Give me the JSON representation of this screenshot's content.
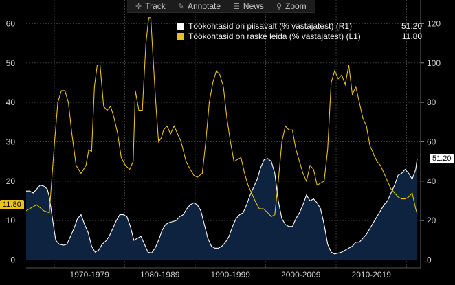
{
  "toolbar": {
    "track_label": "Track",
    "annotate_label": "Annotate",
    "news_label": "News",
    "zoom_label": "Zoom"
  },
  "legend": {
    "r1_label": "Töökohtasid on piisavalt (% vastajatest) (R1)",
    "r1_value": "51.20",
    "l1_label": "Töökohtasid on raske leida (% vastajatest) (L1)",
    "l1_value": "11.80"
  },
  "colors": {
    "r1": "#ffffff",
    "l1": "#e8c21a",
    "area_fill": "#0e2340",
    "grid": "#3a3a3a"
  },
  "chart_data": {
    "type": "line",
    "x_domain": [
      1965.5,
      2021.5
    ],
    "left_axis": {
      "ticks": [
        0,
        10,
        20,
        30,
        40,
        50,
        60
      ],
      "range": [
        -2,
        66
      ]
    },
    "right_axis": {
      "ticks": [
        0,
        20,
        40,
        60,
        80,
        100,
        120
      ],
      "range": [
        -4,
        132
      ]
    },
    "x_bands": [
      "1970-1979",
      "1980-1989",
      "1990-1999",
      "2000-2009",
      "2010-2019"
    ],
    "grid": true,
    "legend_position": "top-right",
    "series": [
      {
        "name": "Töökohtasid on raske leida (% vastajatest) (L1)",
        "axis": "left",
        "values": [
          [
            1965.5,
            12.5
          ],
          [
            1967.0,
            14.0
          ],
          [
            1968.0,
            12.5
          ],
          [
            1968.8,
            12.0
          ],
          [
            1969.5,
            29.0
          ],
          [
            1970.0,
            40.0
          ],
          [
            1970.5,
            43.0
          ],
          [
            1971.0,
            43.0
          ],
          [
            1971.5,
            40.0
          ],
          [
            1972.0,
            32.0
          ],
          [
            1972.6,
            24.0
          ],
          [
            1973.3,
            22.0
          ],
          [
            1974.0,
            24.0
          ],
          [
            1974.4,
            28.0
          ],
          [
            1974.8,
            27.5
          ],
          [
            1975.2,
            44.0
          ],
          [
            1975.6,
            49.5
          ],
          [
            1976.0,
            49.5
          ],
          [
            1976.5,
            39.0
          ],
          [
            1977.0,
            38.0
          ],
          [
            1977.5,
            39.0
          ],
          [
            1978.0,
            36.0
          ],
          [
            1978.5,
            32.0
          ],
          [
            1979.0,
            26.0
          ],
          [
            1979.6,
            24.0
          ],
          [
            1980.2,
            23.0
          ],
          [
            1980.7,
            25.0
          ],
          [
            1981.0,
            43.0
          ],
          [
            1981.5,
            38.0
          ],
          [
            1982.0,
            38.0
          ],
          [
            1982.5,
            55.0
          ],
          [
            1982.9,
            61.5
          ],
          [
            1983.2,
            61.5
          ],
          [
            1983.5,
            52.0
          ],
          [
            1983.9,
            40.0
          ],
          [
            1984.3,
            30.0
          ],
          [
            1984.7,
            31.0
          ],
          [
            1985.0,
            33.0
          ],
          [
            1985.5,
            34.0
          ],
          [
            1986.0,
            32.0
          ],
          [
            1986.5,
            34.0
          ],
          [
            1987.0,
            32.0
          ],
          [
            1987.5,
            30.0
          ],
          [
            1988.2,
            25.0
          ],
          [
            1988.8,
            23.0
          ],
          [
            1989.3,
            21.5
          ],
          [
            1989.8,
            21.0
          ],
          [
            1990.5,
            22.0
          ],
          [
            1991.0,
            30.0
          ],
          [
            1991.5,
            40.0
          ],
          [
            1992.0,
            45.0
          ],
          [
            1992.5,
            48.0
          ],
          [
            1993.0,
            47.0
          ],
          [
            1993.5,
            44.0
          ],
          [
            1994.0,
            36.0
          ],
          [
            1994.5,
            30.0
          ],
          [
            1995.0,
            25.0
          ],
          [
            1995.5,
            25.5
          ],
          [
            1996.0,
            26.0
          ],
          [
            1996.5,
            22.0
          ],
          [
            1997.0,
            19.0
          ],
          [
            1997.5,
            17.0
          ],
          [
            1998.0,
            15.0
          ],
          [
            1998.6,
            13.0
          ],
          [
            1999.2,
            13.0
          ],
          [
            1999.8,
            12.0
          ],
          [
            2000.3,
            11.0
          ],
          [
            2000.8,
            11.5
          ],
          [
            2001.3,
            20.0
          ],
          [
            2001.8,
            30.0
          ],
          [
            2002.3,
            34.0
          ],
          [
            2002.8,
            33.0
          ],
          [
            2003.3,
            33.0
          ],
          [
            2003.8,
            28.0
          ],
          [
            2004.3,
            25.0
          ],
          [
            2004.8,
            22.0
          ],
          [
            2005.3,
            20.0
          ],
          [
            2005.8,
            24.0
          ],
          [
            2006.3,
            23.0
          ],
          [
            2006.8,
            19.0
          ],
          [
            2007.3,
            19.5
          ],
          [
            2007.8,
            20.0
          ],
          [
            2008.3,
            28.0
          ],
          [
            2008.8,
            45.0
          ],
          [
            2009.3,
            48.0
          ],
          [
            2009.8,
            46.0
          ],
          [
            2010.3,
            47.0
          ],
          [
            2010.8,
            44.5
          ],
          [
            2011.3,
            49.5
          ],
          [
            2011.8,
            42.0
          ],
          [
            2012.3,
            44.0
          ],
          [
            2012.8,
            40.0
          ],
          [
            2013.3,
            36.0
          ],
          [
            2013.8,
            34.0
          ],
          [
            2014.3,
            29.0
          ],
          [
            2014.8,
            27.0
          ],
          [
            2015.3,
            25.0
          ],
          [
            2015.8,
            24.0
          ],
          [
            2016.3,
            22.0
          ],
          [
            2016.8,
            20.0
          ],
          [
            2017.3,
            18.0
          ],
          [
            2017.8,
            17.0
          ],
          [
            2018.3,
            16.0
          ],
          [
            2018.8,
            15.5
          ],
          [
            2019.3,
            15.5
          ],
          [
            2019.8,
            16.0
          ],
          [
            2020.3,
            17.0
          ],
          [
            2020.8,
            13.0
          ],
          [
            2021.0,
            11.8
          ]
        ]
      },
      {
        "name": "Töökohtasid on piisavalt (% vastajatest) (R1)",
        "axis": "right",
        "values": [
          [
            1965.5,
            35.0
          ],
          [
            1966.0,
            35.0
          ],
          [
            1966.5,
            34.0
          ],
          [
            1967.0,
            36.0
          ],
          [
            1967.5,
            38.0
          ],
          [
            1968.0,
            37.5
          ],
          [
            1968.5,
            36.0
          ],
          [
            1968.8,
            32.0
          ],
          [
            1969.2,
            22.0
          ],
          [
            1969.7,
            10.0
          ],
          [
            1970.2,
            8.0
          ],
          [
            1970.8,
            7.5
          ],
          [
            1971.3,
            8.0
          ],
          [
            1971.8,
            12.0
          ],
          [
            1972.3,
            16.0
          ],
          [
            1972.8,
            21.0
          ],
          [
            1973.3,
            23.0
          ],
          [
            1973.8,
            18.0
          ],
          [
            1974.3,
            14.0
          ],
          [
            1974.8,
            7.0
          ],
          [
            1975.3,
            4.0
          ],
          [
            1975.8,
            5.0
          ],
          [
            1976.3,
            8.0
          ],
          [
            1976.8,
            9.5
          ],
          [
            1977.3,
            12.0
          ],
          [
            1977.8,
            16.0
          ],
          [
            1978.3,
            20.0
          ],
          [
            1978.8,
            23.0
          ],
          [
            1979.3,
            23.0
          ],
          [
            1979.8,
            22.0
          ],
          [
            1980.3,
            17.0
          ],
          [
            1980.8,
            10.0
          ],
          [
            1981.3,
            11.0
          ],
          [
            1981.8,
            12.0
          ],
          [
            1982.3,
            8.0
          ],
          [
            1982.8,
            4.0
          ],
          [
            1983.3,
            3.5
          ],
          [
            1983.8,
            6.0
          ],
          [
            1984.3,
            10.0
          ],
          [
            1984.8,
            15.0
          ],
          [
            1985.3,
            18.0
          ],
          [
            1985.8,
            19.0
          ],
          [
            1986.3,
            19.5
          ],
          [
            1986.8,
            20.0
          ],
          [
            1987.3,
            22.0
          ],
          [
            1987.8,
            23.0
          ],
          [
            1988.3,
            26.0
          ],
          [
            1988.8,
            28.0
          ],
          [
            1989.3,
            29.0
          ],
          [
            1989.8,
            28.0
          ],
          [
            1990.3,
            25.0
          ],
          [
            1990.8,
            18.0
          ],
          [
            1991.3,
            11.0
          ],
          [
            1991.8,
            7.0
          ],
          [
            1992.3,
            6.0
          ],
          [
            1992.8,
            6.0
          ],
          [
            1993.3,
            7.0
          ],
          [
            1993.8,
            9.0
          ],
          [
            1994.3,
            12.0
          ],
          [
            1994.8,
            17.0
          ],
          [
            1995.3,
            21.0
          ],
          [
            1995.8,
            23.0
          ],
          [
            1996.3,
            24.0
          ],
          [
            1996.8,
            28.0
          ],
          [
            1997.3,
            33.0
          ],
          [
            1997.8,
            37.0
          ],
          [
            1998.3,
            41.0
          ],
          [
            1998.8,
            47.0
          ],
          [
            1999.3,
            51.0
          ],
          [
            1999.8,
            51.5
          ],
          [
            2000.3,
            50.0
          ],
          [
            2000.8,
            44.0
          ],
          [
            2001.3,
            30.0
          ],
          [
            2001.8,
            21.0
          ],
          [
            2002.3,
            18.0
          ],
          [
            2002.8,
            17.0
          ],
          [
            2003.3,
            17.0
          ],
          [
            2003.8,
            21.0
          ],
          [
            2004.3,
            24.0
          ],
          [
            2004.8,
            28.0
          ],
          [
            2005.3,
            33.0
          ],
          [
            2005.8,
            30.0
          ],
          [
            2006.3,
            31.0
          ],
          [
            2006.8,
            29.0
          ],
          [
            2007.3,
            26.0
          ],
          [
            2007.8,
            18.0
          ],
          [
            2008.3,
            8.0
          ],
          [
            2008.8,
            4.0
          ],
          [
            2009.3,
            3.0
          ],
          [
            2009.8,
            3.5
          ],
          [
            2010.3,
            4.0
          ],
          [
            2010.8,
            5.0
          ],
          [
            2011.3,
            6.0
          ],
          [
            2011.8,
            7.0
          ],
          [
            2012.3,
            9.0
          ],
          [
            2012.8,
            9.0
          ],
          [
            2013.3,
            11.0
          ],
          [
            2013.8,
            13.0
          ],
          [
            2014.3,
            16.0
          ],
          [
            2014.8,
            19.0
          ],
          [
            2015.3,
            22.0
          ],
          [
            2015.8,
            25.0
          ],
          [
            2016.3,
            28.0
          ],
          [
            2016.8,
            30.0
          ],
          [
            2017.3,
            34.0
          ],
          [
            2017.8,
            38.0
          ],
          [
            2018.3,
            43.0
          ],
          [
            2018.8,
            44.0
          ],
          [
            2019.3,
            46.0
          ],
          [
            2019.8,
            44.0
          ],
          [
            2020.3,
            41.0
          ],
          [
            2020.8,
            46.0
          ],
          [
            2021.0,
            51.2
          ]
        ]
      }
    ]
  }
}
